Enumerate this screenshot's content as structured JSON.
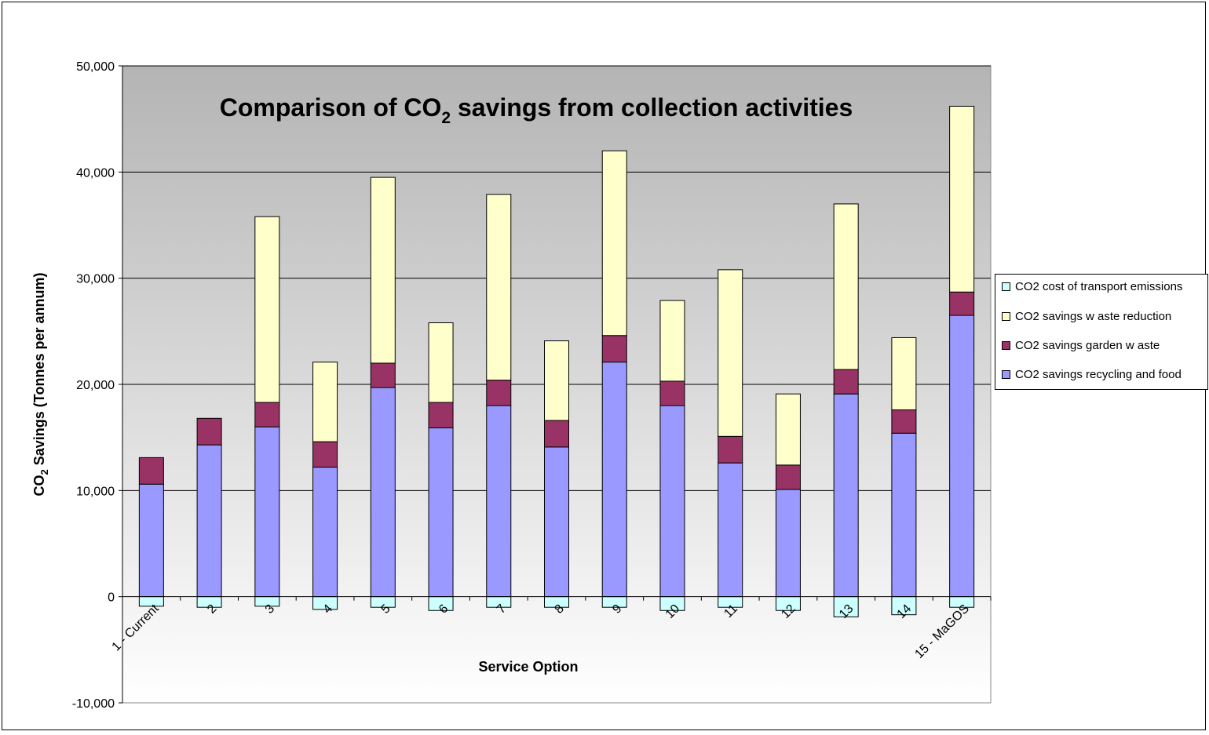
{
  "chart_data": {
    "type": "bar",
    "stacked": true,
    "title_main": "Comparison of CO",
    "title_sub": "2",
    "title_rest": " savings from collection activities",
    "xlabel": "Service Option",
    "ylabel_main": "CO",
    "ylabel_sub": "2",
    "ylabel_rest": " Savings (Tonnes per annum)",
    "ylim": [
      -10000,
      50000
    ],
    "yticks": [
      -10000,
      0,
      10000,
      20000,
      30000,
      40000,
      50000
    ],
    "ytick_labels": [
      "-10,000",
      "0",
      "10,000",
      "20,000",
      "30,000",
      "40,000",
      "50,000"
    ],
    "categories": [
      "1 - Current",
      "2",
      "3",
      "4",
      "5",
      "6",
      "7",
      "8",
      "9",
      "10",
      "11",
      "12",
      "13",
      "14",
      "15 - MaGOS"
    ],
    "series": [
      {
        "name": "CO2 cost of transport emissions",
        "color": "#ccffff",
        "values": [
          -900,
          -1000,
          -900,
          -1200,
          -1000,
          -1300,
          -1000,
          -1000,
          -1000,
          -1300,
          -1000,
          -1300,
          -1900,
          -1700,
          -1000
        ]
      },
      {
        "name": "CO2 savings w aste reduction",
        "color": "#ffffcc",
        "values": [
          0,
          0,
          17500,
          7500,
          17500,
          7500,
          17500,
          7500,
          17400,
          7600,
          15700,
          6700,
          15600,
          6800,
          17500
        ]
      },
      {
        "name": "CO2 savings garden w aste",
        "color": "#993366",
        "values": [
          2500,
          2500,
          2300,
          2400,
          2300,
          2400,
          2400,
          2500,
          2500,
          2300,
          2500,
          2300,
          2300,
          2200,
          2200
        ]
      },
      {
        "name": "CO2 savings recycling and food",
        "color": "#9999ff",
        "values": [
          10600,
          14300,
          16000,
          12200,
          19700,
          15900,
          18000,
          14100,
          22100,
          18000,
          12600,
          10100,
          19100,
          15400,
          26500
        ]
      }
    ],
    "stack_order": [
      "CO2 savings recycling and food",
      "CO2 savings garden w aste",
      "CO2 savings w aste reduction"
    ],
    "grid": true,
    "legend_position": "right",
    "plot_background": "gradient grey to white"
  }
}
